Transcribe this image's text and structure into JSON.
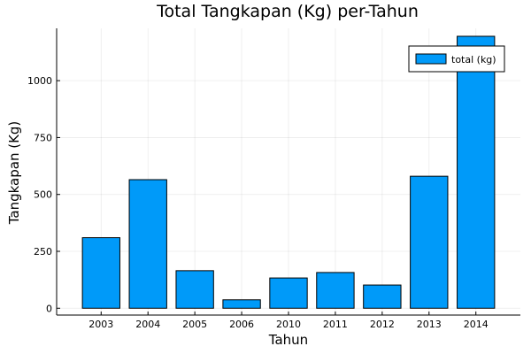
{
  "chart_data": {
    "type": "bar",
    "title": "Total Tangkapan (Kg) per-Tahun",
    "xlabel": "Tahun",
    "ylabel": "Tangkapan (Kg)",
    "categories": [
      "2003",
      "2004",
      "2005",
      "2006",
      "2010",
      "2011",
      "2012",
      "2013",
      "2014"
    ],
    "series": [
      {
        "name": "total (kg)",
        "color": "#009AF9",
        "values": [
          310,
          565,
          165,
          37,
          133,
          157,
          102,
          580,
          1195
        ]
      }
    ],
    "ylim": [
      -30,
      1230
    ],
    "yticks": [
      0,
      250,
      500,
      750,
      1000
    ],
    "grid": true,
    "legend_position": "top-right"
  }
}
